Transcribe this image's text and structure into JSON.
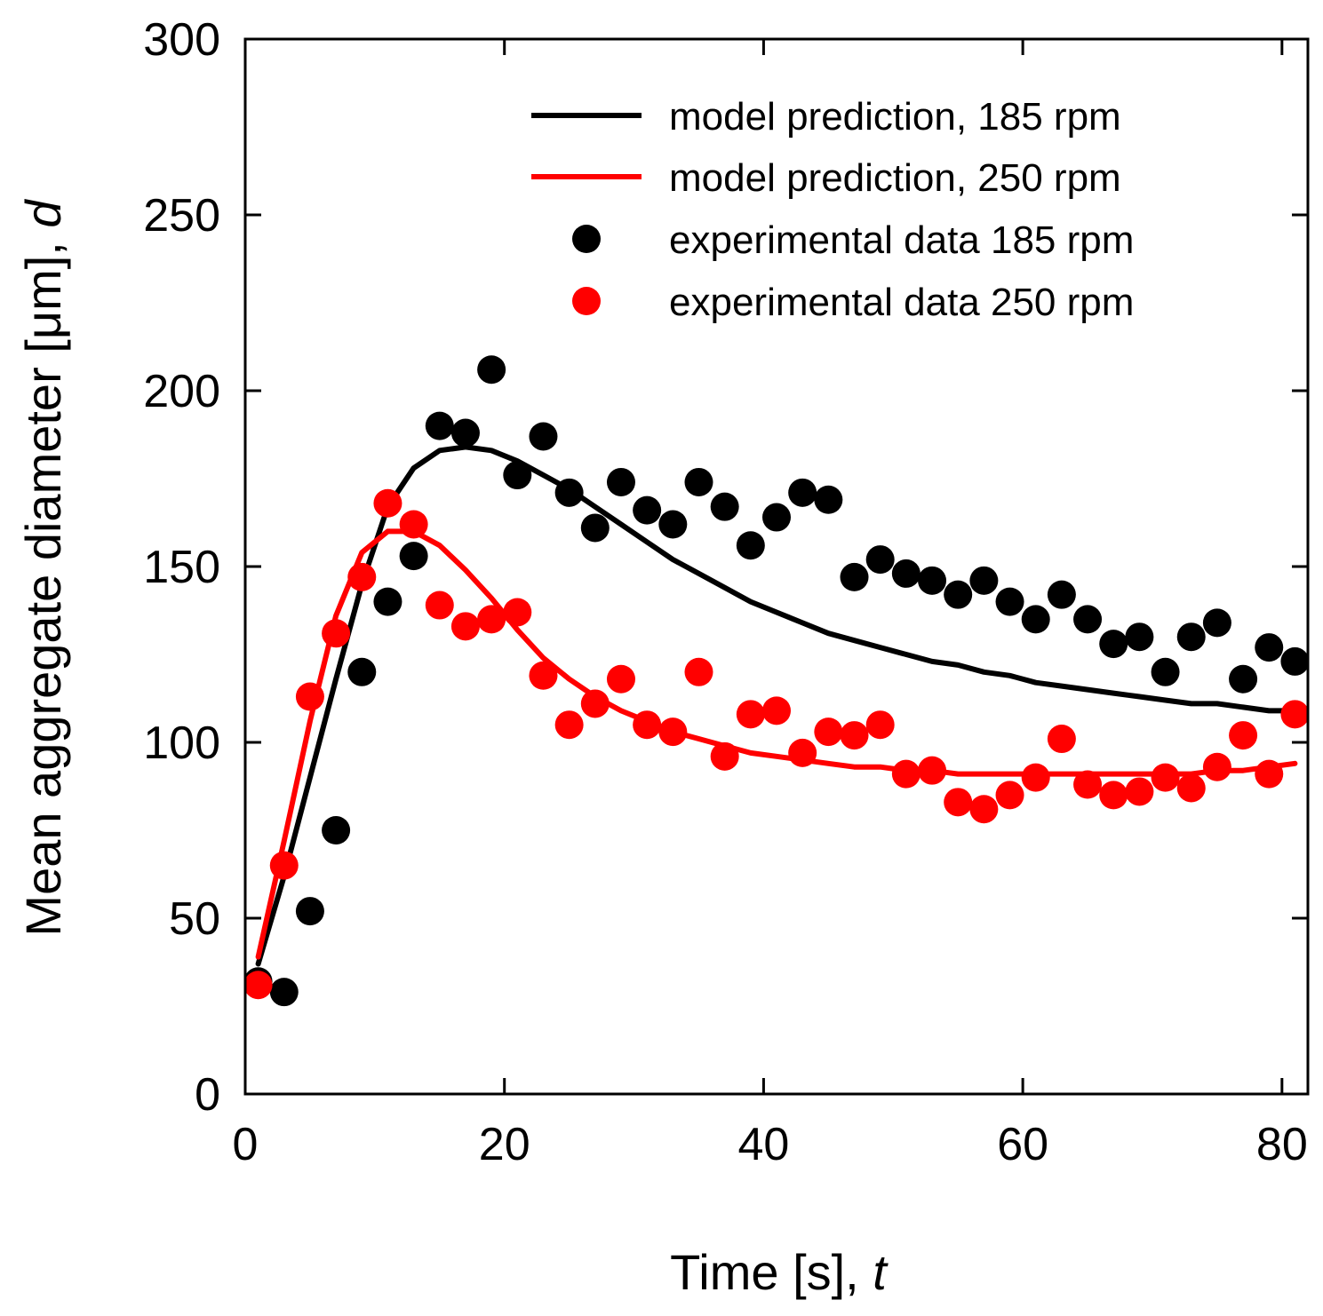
{
  "chart_data": {
    "type": "line",
    "xlabel": "Time [s], ",
    "xlabel_var": "t",
    "ylabel": "Mean aggregate diameter [μm], ",
    "ylabel_var": "d",
    "xlim": [
      0,
      82
    ],
    "ylim": [
      0,
      300
    ],
    "x_ticks": [
      0,
      20,
      40,
      60,
      80
    ],
    "y_ticks": [
      0,
      50,
      100,
      150,
      200,
      250,
      300
    ],
    "grid": false,
    "legend_position": "top-right",
    "series": [
      {
        "name": "model prediction, 185 rpm",
        "kind": "line",
        "color": "#000000",
        "x": [
          1,
          3,
          5,
          7,
          9,
          11,
          13,
          15,
          17,
          19,
          21,
          23,
          25,
          27,
          29,
          31,
          33,
          35,
          37,
          39,
          41,
          43,
          45,
          47,
          49,
          51,
          53,
          55,
          57,
          59,
          61,
          63,
          65,
          67,
          69,
          71,
          73,
          75,
          77,
          79,
          81
        ],
        "y": [
          37,
          62,
          90,
          118,
          145,
          167,
          178,
          183,
          184,
          183,
          180,
          176,
          172,
          167,
          162,
          157,
          152,
          148,
          144,
          140,
          137,
          134,
          131,
          129,
          127,
          125,
          123,
          122,
          120,
          119,
          117,
          116,
          115,
          114,
          113,
          112,
          111,
          111,
          110,
          109,
          109
        ]
      },
      {
        "name": "model prediction, 250 rpm",
        "kind": "line",
        "color": "#ff0000",
        "x": [
          1,
          3,
          5,
          7,
          9,
          11,
          13,
          15,
          17,
          19,
          21,
          23,
          25,
          27,
          29,
          31,
          33,
          35,
          37,
          39,
          41,
          43,
          45,
          47,
          49,
          51,
          53,
          55,
          57,
          59,
          61,
          63,
          65,
          67,
          69,
          71,
          73,
          75,
          77,
          79,
          81
        ],
        "y": [
          39,
          72,
          106,
          136,
          154,
          160,
          160,
          156,
          149,
          141,
          132,
          124,
          118,
          113,
          109,
          106,
          103,
          101,
          99,
          97,
          96,
          95,
          94,
          93,
          93,
          92,
          92,
          91,
          91,
          91,
          91,
          91,
          91,
          91,
          91,
          91,
          91,
          92,
          92,
          93,
          94
        ]
      },
      {
        "name": "experimental data 185 rpm",
        "kind": "scatter",
        "color": "#000000",
        "x": [
          1,
          3,
          5,
          7,
          9,
          11,
          13,
          15,
          17,
          19,
          21,
          23,
          25,
          27,
          29,
          31,
          33,
          35,
          37,
          39,
          41,
          43,
          45,
          47,
          49,
          51,
          53,
          55,
          57,
          59,
          61,
          63,
          65,
          67,
          69,
          71,
          73,
          75,
          77,
          79,
          81
        ],
        "y": [
          32,
          29,
          52,
          75,
          120,
          140,
          153,
          190,
          188,
          206,
          176,
          187,
          171,
          161,
          174,
          166,
          162,
          174,
          167,
          156,
          164,
          171,
          169,
          147,
          152,
          148,
          146,
          142,
          146,
          140,
          135,
          142,
          135,
          128,
          130,
          120,
          130,
          134,
          118,
          127,
          123
        ]
      },
      {
        "name": "experimental data 250 rpm",
        "kind": "scatter",
        "color": "#ff0000",
        "x": [
          1,
          3,
          5,
          7,
          9,
          11,
          13,
          15,
          17,
          19,
          21,
          23,
          25,
          27,
          29,
          31,
          33,
          35,
          37,
          39,
          41,
          43,
          45,
          47,
          49,
          51,
          53,
          55,
          57,
          59,
          61,
          63,
          65,
          67,
          69,
          71,
          73,
          75,
          77,
          79,
          81
        ],
        "y": [
          31,
          65,
          113,
          131,
          147,
          168,
          162,
          139,
          133,
          135,
          137,
          119,
          105,
          111,
          118,
          105,
          103,
          120,
          96,
          108,
          109,
          97,
          103,
          102,
          105,
          91,
          92,
          83,
          81,
          85,
          90,
          101,
          88,
          85,
          86,
          90,
          87,
          93,
          102,
          91,
          108
        ]
      }
    ]
  }
}
